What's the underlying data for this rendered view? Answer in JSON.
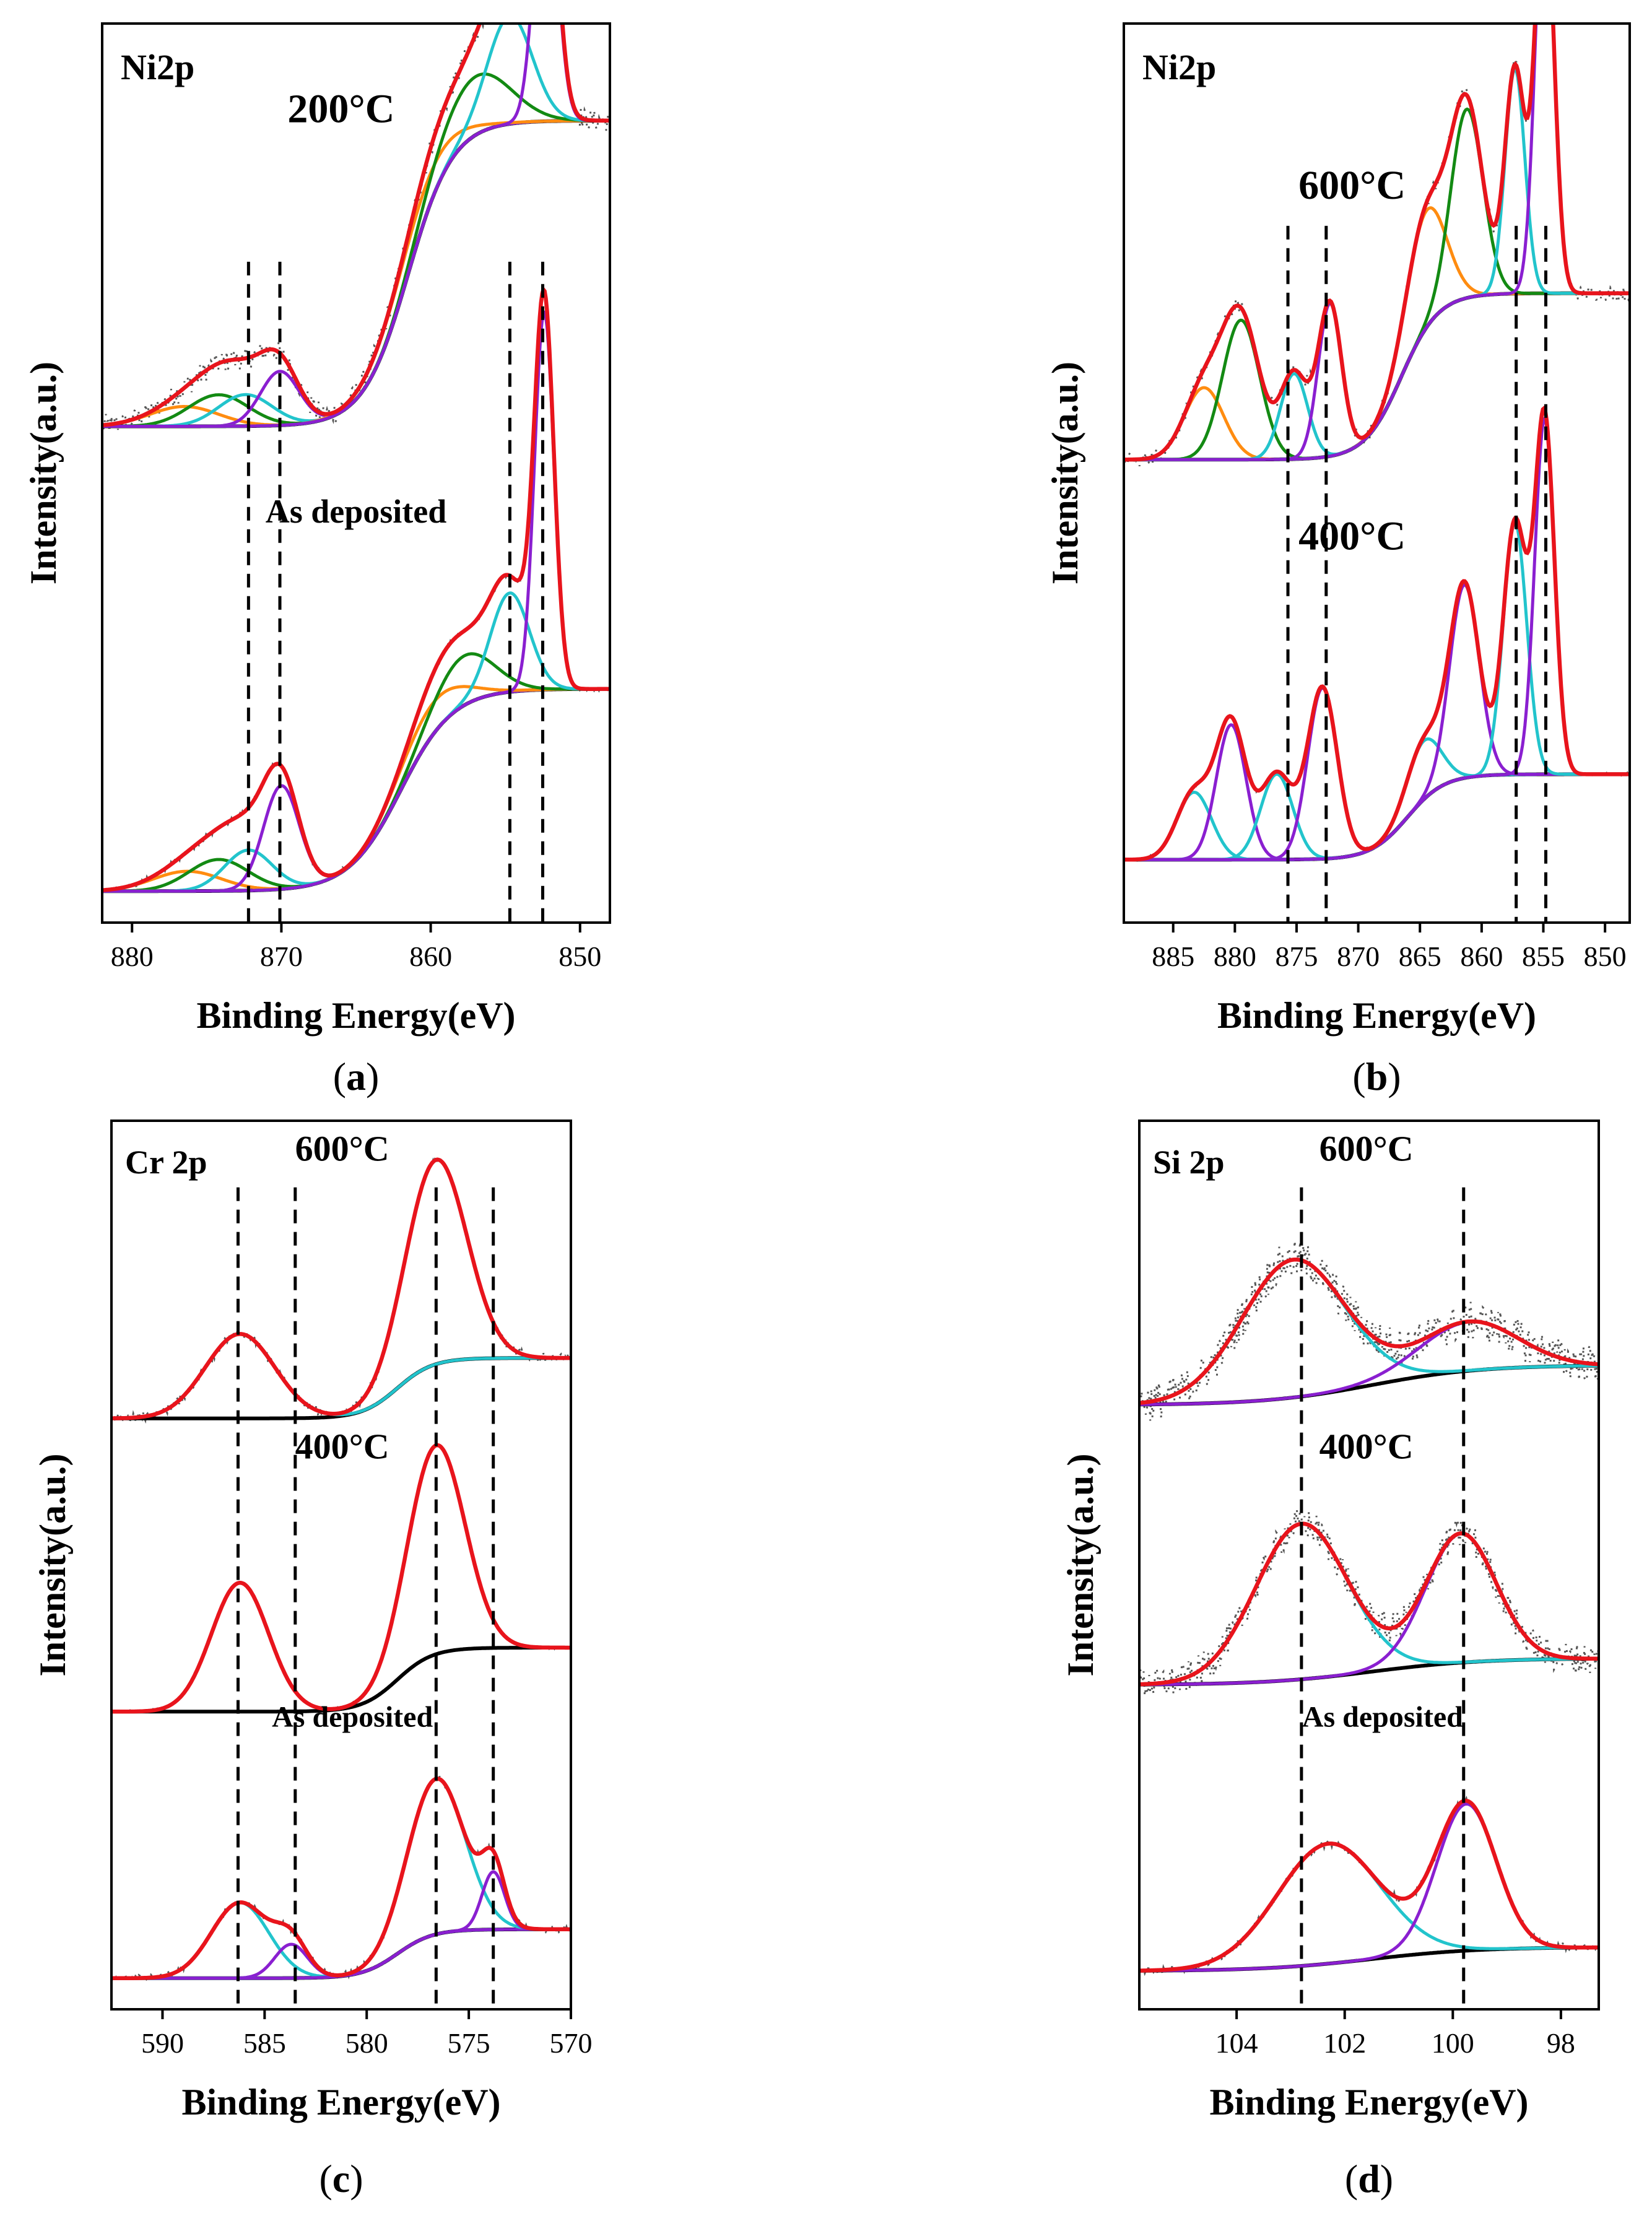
{
  "figure": {
    "description_free": true
  },
  "colors": {
    "envelope": "#e8141c",
    "background": "#000000",
    "raw": "#555555",
    "cyan": "#22c4cc",
    "purple": "#8a1fd0",
    "green": "#138a13",
    "orange": "#ff8c10"
  },
  "chart_data": [
    {
      "id": "a",
      "type": "line",
      "panel_label": "(a)",
      "label_text": {
        "pre": "(",
        "letter": "a",
        "post": ")"
      },
      "title": "Ni2p",
      "xlabel": "Binding Energy(eV)",
      "ylabel": "Intensity(a.u.)",
      "xlim": [
        882,
        848
      ],
      "ylim": [
        0,
        10
      ],
      "xticks": [
        880,
        870,
        860,
        850
      ],
      "xtick_labels": [
        "880",
        "870",
        "860",
        "850"
      ],
      "yticks": [],
      "guides": [
        872.2,
        870.1,
        854.7,
        852.5
      ],
      "annotations": [
        {
          "text": "200°C",
          "x": 866.0,
          "y": 8.9,
          "size": 66
        },
        {
          "text": "As deposited",
          "x": 865.0,
          "y": 4.45,
          "size": 54
        }
      ],
      "series": [
        {
          "name": "200°C",
          "base": 8.7,
          "offset": 5.52,
          "drop": 3.4,
          "step_at": 861.5,
          "step_w": 6,
          "raw_noise": 0.12,
          "components": [
            {
              "color": "orange",
              "center": 876.5,
              "height": 0.22,
              "width": 2.3
            },
            {
              "color": "green",
              "center": 874.2,
              "height": 0.35,
              "width": 2.0
            },
            {
              "color": "cyan",
              "center": 872.4,
              "height": 0.35,
              "width": 1.8
            },
            {
              "color": "purple",
              "center": 870.1,
              "height": 0.6,
              "width": 1.3
            },
            {
              "color": "orange",
              "center": 860.8,
              "height": 0.35,
              "width": 2.4
            },
            {
              "color": "green",
              "center": 857.0,
              "height": 0.65,
              "width": 2.3
            },
            {
              "color": "cyan",
              "center": 854.7,
              "height": 1.2,
              "width": 1.5
            },
            {
              "color": "purple",
              "center": 852.3,
              "height": 3.0,
              "width": 0.75
            }
          ]
        },
        {
          "name": "As deposited",
          "base": 5.7,
          "offset": 0.35,
          "drop": 2.25,
          "step_at": 862,
          "step_w": 7,
          "raw_noise": 0.03,
          "components": [
            {
              "color": "orange",
              "center": 876.3,
              "height": 0.22,
              "width": 2.3
            },
            {
              "color": "green",
              "center": 874.2,
              "height": 0.35,
              "width": 2.0
            },
            {
              "color": "cyan",
              "center": 872.2,
              "height": 0.45,
              "width": 1.6
            },
            {
              "color": "purple",
              "center": 870.0,
              "height": 1.15,
              "width": 1.2
            },
            {
              "color": "orange",
              "center": 860.0,
              "height": 0.35,
              "width": 2.2
            },
            {
              "color": "green",
              "center": 857.8,
              "height": 0.55,
              "width": 2.0
            },
            {
              "color": "cyan",
              "center": 854.7,
              "height": 1.1,
              "width": 1.3
            },
            {
              "color": "purple",
              "center": 852.4,
              "height": 4.2,
              "width": 0.65
            }
          ]
        }
      ]
    },
    {
      "id": "b",
      "type": "line",
      "panel_label": "(b)",
      "label_text": {
        "pre": "(",
        "letter": "b",
        "post": ")"
      },
      "title": "Ni2p",
      "xlabel": "Binding Energy(eV)",
      "ylabel": "Intensity(a.u.)",
      "xlim": [
        889,
        848
      ],
      "ylim": [
        0,
        10
      ],
      "xticks": [
        885,
        880,
        875,
        870,
        865,
        860,
        855,
        850
      ],
      "xtick_labels": [
        "885",
        "880",
        "875",
        "870",
        "865",
        "860",
        "855",
        "850"
      ],
      "yticks": [],
      "guides": [
        875.7,
        872.6,
        857.2,
        854.8
      ],
      "annotations": [
        {
          "text": "600°C",
          "x": 870.5,
          "y": 8.05,
          "size": 66
        },
        {
          "text": "400°C",
          "x": 870.5,
          "y": 4.15,
          "size": 66
        }
      ],
      "series": [
        {
          "name": "600°C",
          "base": 7.0,
          "offset": 5.15,
          "drop": 1.85,
          "step_at": 866.5,
          "step_w": 6,
          "raw_noise": 0.08,
          "components": [
            {
              "color": "orange",
              "center": 882.5,
              "height": 0.8,
              "width": 1.6
            },
            {
              "color": "green",
              "center": 879.5,
              "height": 1.55,
              "width": 1.5
            },
            {
              "color": "cyan",
              "center": 875.2,
              "height": 0.95,
              "width": 1.1
            },
            {
              "color": "purple",
              "center": 872.3,
              "height": 1.7,
              "width": 0.95
            },
            {
              "color": "orange",
              "center": 864.5,
              "height": 1.3,
              "width": 1.6
            },
            {
              "color": "green",
              "center": 861.2,
              "height": 2.1,
              "width": 1.3
            },
            {
              "color": "cyan",
              "center": 857.3,
              "height": 2.5,
              "width": 0.8
            },
            {
              "color": "purple",
              "center": 854.9,
              "height": 4.6,
              "width": 0.75
            }
          ]
        },
        {
          "name": "400°C",
          "base": 2.75,
          "offset": 0.7,
          "drop": 0.95,
          "step_at": 866,
          "step_w": 6,
          "raw_noise": 0.02,
          "components": [
            {
              "color": "cyan",
              "center": 883.3,
              "height": 0.75,
              "width": 1.4
            },
            {
              "color": "purple",
              "center": 880.3,
              "height": 1.5,
              "width": 1.2
            },
            {
              "color": "cyan",
              "center": 876.6,
              "height": 0.95,
              "width": 1.3
            },
            {
              "color": "purple",
              "center": 872.9,
              "height": 1.9,
              "width": 1.2
            },
            {
              "color": "cyan",
              "center": 864.7,
              "height": 0.65,
              "width": 1.4
            },
            {
              "color": "purple",
              "center": 861.4,
              "height": 2.15,
              "width": 1.2
            },
            {
              "color": "cyan",
              "center": 857.3,
              "height": 2.8,
              "width": 0.95
            },
            {
              "color": "purple",
              "center": 854.9,
              "height": 3.95,
              "width": 0.8
            }
          ]
        }
      ]
    },
    {
      "id": "c",
      "type": "line",
      "panel_label": "(c)",
      "label_text": {
        "pre": "(",
        "letter": "c",
        "post": ")"
      },
      "title": "Cr 2p",
      "xlabel": "Binding Energy(eV)",
      "ylabel": "Intensity(a.u.)",
      "xlim": [
        592.5,
        570
      ],
      "ylim": [
        0,
        10
      ],
      "xticks": [
        590,
        585,
        580,
        575,
        570
      ],
      "xtick_labels": [
        "590",
        "585",
        "580",
        "575",
        "570"
      ],
      "yticks": [],
      "guides": [
        586.3,
        583.5,
        576.6,
        573.8
      ],
      "annotations": [
        {
          "text": "600°C",
          "x": 581.2,
          "y": 9.55,
          "size": 58
        },
        {
          "text": "400°C",
          "x": 581.2,
          "y": 6.2,
          "size": 58
        },
        {
          "text": "As deposited",
          "x": 580.7,
          "y": 3.18,
          "size": 48
        }
      ],
      "series": [
        {
          "name": "600°C",
          "base": 7.35,
          "offset": 6.65,
          "drop": 0.68,
          "step_at": 578.5,
          "step_w": 3.5,
          "raw_noise": 0.05,
          "components": [
            {
              "color": "cyan",
              "center": 586.2,
              "height": 0.95,
              "width": 1.7
            },
            {
              "color": "envelope",
              "center": 576.6,
              "height": 2.3,
              "width": 1.5
            }
          ]
        },
        {
          "name": "400°C",
          "base": 4.1,
          "offset": 3.35,
          "drop": 0.72,
          "step_at": 578.5,
          "step_w": 3.5,
          "raw_noise": 0.015,
          "components": [
            {
              "color": "envelope",
              "center": 586.2,
              "height": 1.45,
              "width": 1.4
            },
            {
              "color": "envelope",
              "center": 576.6,
              "height": 2.35,
              "width": 1.4
            }
          ]
        },
        {
          "name": "As deposited",
          "base": 1.4,
          "offset": 0.35,
          "drop": 0.55,
          "step_at": 578.5,
          "step_w": 3.5,
          "raw_noise": 0.035,
          "components": [
            {
              "color": "cyan",
              "center": 586.2,
              "height": 0.85,
              "width": 1.4
            },
            {
              "color": "purple",
              "center": 583.7,
              "height": 0.38,
              "width": 0.8
            },
            {
              "color": "cyan",
              "center": 576.6,
              "height": 1.75,
              "width": 1.4
            },
            {
              "color": "purple",
              "center": 573.8,
              "height": 0.65,
              "width": 0.55
            }
          ]
        }
      ]
    },
    {
      "id": "d",
      "type": "line",
      "panel_label": "(d)",
      "label_text": {
        "pre": "(",
        "letter": "d",
        "post": ")"
      },
      "title": "Si 2p",
      "xlabel": "Binding Energy(eV)",
      "ylabel": "Intensity(a.u.)",
      "xlim": [
        105.8,
        97.3
      ],
      "ylim": [
        0,
        10
      ],
      "xticks": [
        104,
        102,
        100,
        98
      ],
      "xtick_labels": [
        "104",
        "102",
        "100",
        "98"
      ],
      "yticks": [],
      "guides": [
        102.8,
        99.8
      ],
      "annotations": [
        {
          "text": "600°C",
          "x": 101.6,
          "y": 9.55,
          "size": 58
        },
        {
          "text": "400°C",
          "x": 101.6,
          "y": 6.2,
          "size": 58
        },
        {
          "text": "As deposited",
          "x": 101.3,
          "y": 3.18,
          "size": 48
        }
      ],
      "series": [
        {
          "name": "600°C",
          "base": 7.25,
          "offset": 6.8,
          "drop": 0.45,
          "step_at": 101.5,
          "step_w": 4,
          "raw_noise": 0.22,
          "components": [
            {
              "color": "cyan",
              "center": 102.95,
              "height": 1.55,
              "width": 0.95
            },
            {
              "color": "purple",
              "center": 99.7,
              "height": 0.55,
              "width": 0.9
            }
          ]
        },
        {
          "name": "400°C",
          "base": 3.95,
          "offset": 3.65,
          "drop": 0.3,
          "step_at": 101.5,
          "step_w": 4,
          "raw_noise": 0.18,
          "components": [
            {
              "color": "cyan",
              "center": 102.8,
              "height": 1.75,
              "width": 0.85
            },
            {
              "color": "purple",
              "center": 99.85,
              "height": 1.45,
              "width": 0.65
            }
          ]
        },
        {
          "name": "As deposited",
          "base": 0.7,
          "offset": 0.43,
          "drop": 0.27,
          "step_at": 101.5,
          "step_w": 4,
          "raw_noise": 0.04,
          "components": [
            {
              "color": "cyan",
              "center": 102.3,
              "height": 1.35,
              "width": 0.95
            },
            {
              "color": "purple",
              "center": 99.75,
              "height": 1.65,
              "width": 0.55
            }
          ]
        }
      ]
    }
  ]
}
